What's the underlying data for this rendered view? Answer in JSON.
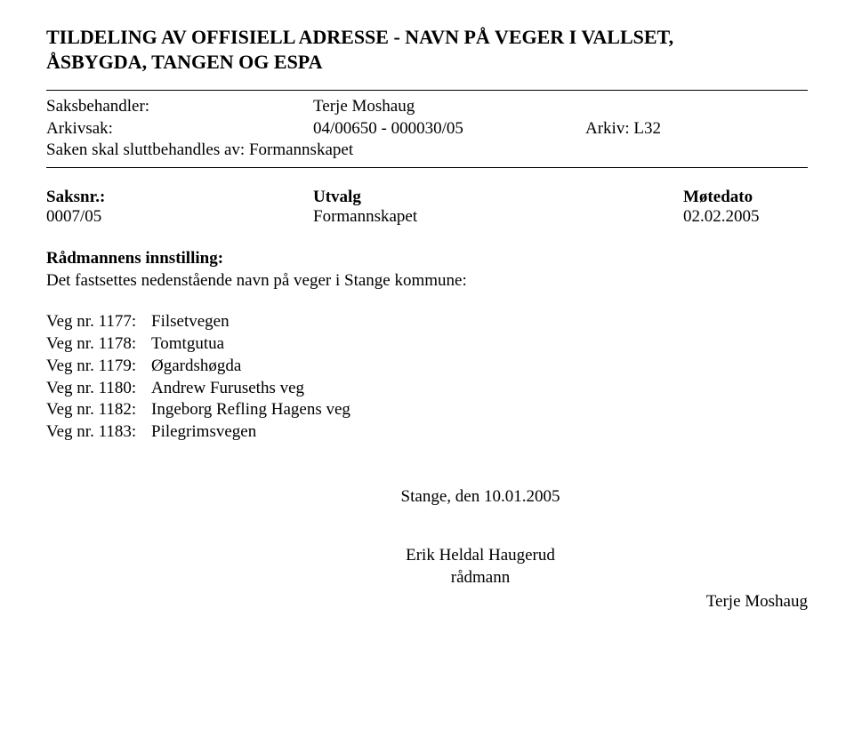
{
  "title_line1": "TILDELING AV OFFISIELL ADRESSE - NAVN PÅ VEGER I VALLSET,",
  "title_line2": "ÅSBYGDA, TANGEN OG ESPA",
  "meta": {
    "saksbehandler_label": "Saksbehandler:",
    "saksbehandler_value": "Terje Moshaug",
    "arkivsak_label": "Arkivsak:",
    "arkivsak_value": "04/00650 - 000030/05",
    "arkiv_label_value": "Arkiv: L32",
    "saken_line": "Saken skal sluttbehandles av: Formannskapet"
  },
  "sak": {
    "h_saksnr": "Saksnr.:",
    "h_utvalg": "Utvalg",
    "h_motedato": "Møtedato",
    "r_saksnr": "0007/05",
    "r_utvalg": "Formannskapet",
    "r_date": "02.02.2005"
  },
  "innstilling": {
    "heading": "Rådmannens innstilling:",
    "text": "Det fastsettes nedenstående navn på veger i Stange kommune:"
  },
  "veger": [
    {
      "label": "Veg nr. 1177:",
      "name": "Filsetvegen"
    },
    {
      "label": "Veg nr. 1178:",
      "name": "Tomtgutua"
    },
    {
      "label": "Veg nr. 1179:",
      "name": "Øgardshøgda"
    },
    {
      "label": "Veg nr. 1180:",
      "name": "Andrew Furuseths veg"
    },
    {
      "label": "Veg nr. 1182:",
      "name": "Ingeborg Refling Hagens veg"
    },
    {
      "label": "Veg nr. 1183:",
      "name": "Pilegrimsvegen"
    }
  ],
  "sig": {
    "place_date": "Stange, den 10.01.2005",
    "name": "Erik Heldal Haugerud",
    "role": "rådmann",
    "right_name": "Terje Moshaug"
  }
}
